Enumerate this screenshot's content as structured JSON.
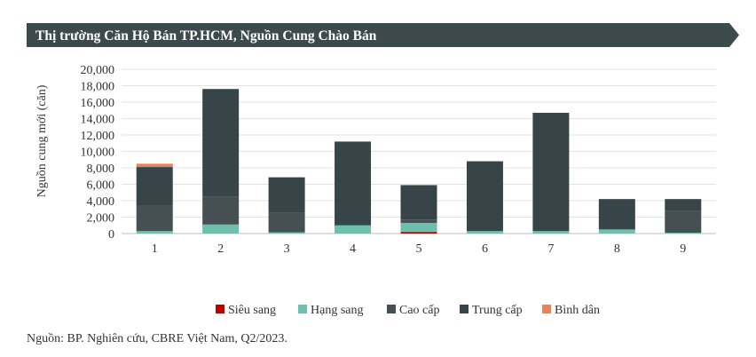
{
  "header": {
    "title": "Thị trường Căn Hộ Bán TP.HCM, Nguồn Cung Chào Bán",
    "background": "#3d4a4d"
  },
  "chart_data": {
    "type": "bar",
    "stacked": true,
    "ylabel": "Nguồn cung mới (căn)",
    "ylim": [
      0,
      20000
    ],
    "y_ticks": [
      "0",
      "2,000",
      "4,000",
      "6,000",
      "8,000",
      "10,000",
      "12,000",
      "14,000",
      "16,000",
      "18,000",
      "20,000"
    ],
    "categories": [
      "1",
      "2",
      "3",
      "4",
      "5",
      "6",
      "7",
      "8",
      "9"
    ],
    "grid": true,
    "legend_position": "bottom",
    "series": [
      {
        "name": "Siêu sang",
        "color": "#c00000",
        "values": [
          0,
          0,
          0,
          0,
          200,
          0,
          0,
          0,
          0
        ]
      },
      {
        "name": "Hạng sang",
        "color": "#6fbfae",
        "values": [
          300,
          1100,
          150,
          1000,
          1100,
          300,
          300,
          500,
          100
        ]
      },
      {
        "name": "Cao cấp",
        "color": "#464f51",
        "values": [
          3100,
          3400,
          2400,
          0,
          400,
          0,
          0,
          0,
          2700
        ]
      },
      {
        "name": "Trung cấp",
        "color": "#384548",
        "values": [
          4700,
          13100,
          4300,
          10200,
          4200,
          8500,
          14400,
          3700,
          1400
        ]
      },
      {
        "name": "Bình dân",
        "color": "#e8825e",
        "values": [
          400,
          0,
          0,
          0,
          0,
          0,
          0,
          0,
          0
        ]
      }
    ]
  },
  "source": "Nguồn: BP. Nghiên cứu, CBRE Việt Nam, Q2/2023."
}
